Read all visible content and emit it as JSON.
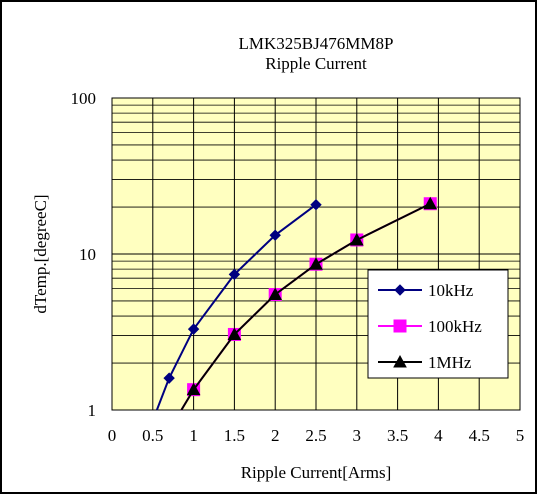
{
  "chart_data": {
    "type": "line",
    "title": "LMK325BJ476MM8P",
    "subtitle": "Ripple Current",
    "xlabel": "Ripple Current[Arms]",
    "ylabel": "dTemp.[degreeC]",
    "xlim": [
      0,
      5
    ],
    "ylim": [
      1,
      100
    ],
    "y_scale": "log",
    "x_ticks": [
      "0",
      "0.5",
      "1",
      "1.5",
      "2",
      "2.5",
      "3",
      "3.5",
      "4",
      "4.5",
      "5"
    ],
    "y_ticks": [
      "1",
      "10",
      "100"
    ],
    "grid": true,
    "plot_background": "#ffffc0",
    "legend_position": "right",
    "series": [
      {
        "name": "10kHz",
        "color": "#000080",
        "marker": "diamond",
        "x": [
          0.55,
          0.7,
          1.0,
          1.5,
          2.0,
          2.5
        ],
        "y": [
          1.0,
          1.6,
          3.3,
          7.4,
          13.2,
          20.7
        ],
        "markers": [
          false,
          true,
          true,
          true,
          true,
          true
        ]
      },
      {
        "name": "100kHz",
        "color": "#ff00ff",
        "marker": "square",
        "x": [
          0.85,
          1.0,
          1.5,
          2.0,
          2.5,
          3.0,
          3.9
        ],
        "y": [
          1.0,
          1.35,
          3.05,
          5.5,
          8.6,
          12.3,
          21.0
        ],
        "markers": [
          false,
          true,
          true,
          true,
          true,
          true,
          true
        ]
      },
      {
        "name": "1MHz",
        "color": "#000000",
        "marker": "triangle",
        "x": [
          0.85,
          1.0,
          1.5,
          2.0,
          2.5,
          3.0,
          3.9
        ],
        "y": [
          1.0,
          1.35,
          3.05,
          5.5,
          8.6,
          12.3,
          21.0
        ],
        "markers": [
          false,
          true,
          true,
          true,
          true,
          true,
          true
        ]
      }
    ]
  }
}
